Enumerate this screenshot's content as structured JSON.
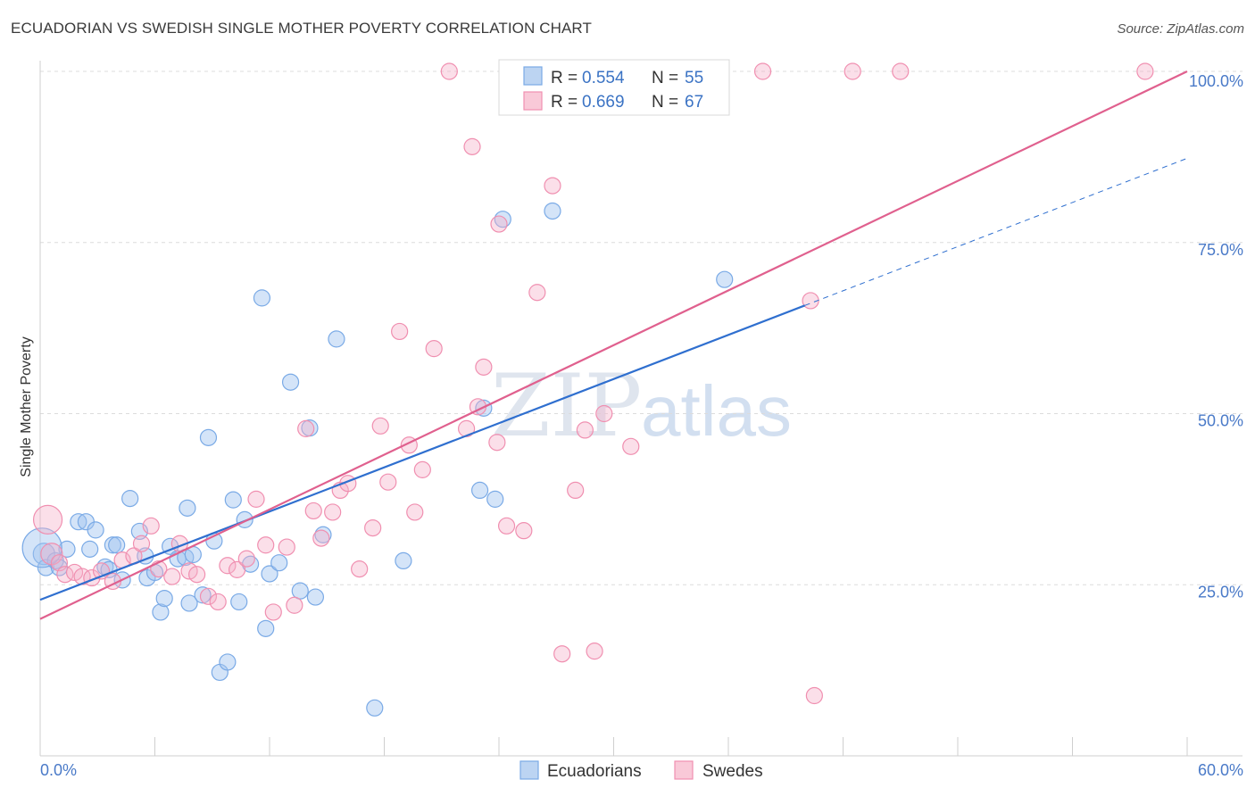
{
  "title": "ECUADORIAN VS SWEDISH SINGLE MOTHER POVERTY CORRELATION CHART",
  "source": "Source: ZipAtlas.com",
  "watermark": {
    "zip": "ZIP",
    "atlas": "atlas"
  },
  "legend": {
    "r_label": "R =",
    "n_label": "N =",
    "items": [
      {
        "r": "0.554",
        "n": "55"
      },
      {
        "r": "0.669",
        "n": "67"
      }
    ]
  },
  "chart_data": {
    "type": "scatter",
    "ylabel": "Single Mother Poverty",
    "xlim": [
      0,
      60
    ],
    "ylim": [
      0,
      100
    ],
    "x_tick_labels": [
      "0.0%",
      "60.0%"
    ],
    "y_ticks": [
      {
        "value": 25,
        "label": "25.0%"
      },
      {
        "value": 50,
        "label": "50.0%"
      },
      {
        "value": 75,
        "label": "75.0%"
      },
      {
        "value": 100,
        "label": "100.0%"
      }
    ],
    "grid": "horizontal dashed",
    "legend_position": "top-center",
    "series": [
      {
        "name": "Ecuadorians",
        "color": "#7aaae6",
        "line_color": "#2f6fcf",
        "trend": {
          "x0": 0,
          "y0": 22.8,
          "x1": 40,
          "y1": 65.8,
          "dash_to_x": 60,
          "dash_to_y": 87.3
        },
        "points": [
          [
            0.2,
            29.5
          ],
          [
            0.3,
            27.5
          ],
          [
            0.8,
            28.5
          ],
          [
            1.0,
            27.5
          ],
          [
            1.4,
            30.2
          ],
          [
            2.0,
            34.2
          ],
          [
            2.4,
            34.2
          ],
          [
            2.6,
            30.2
          ],
          [
            2.9,
            33.0
          ],
          [
            3.4,
            27.6
          ],
          [
            3.6,
            27.2
          ],
          [
            3.8,
            30.8
          ],
          [
            4.0,
            30.8
          ],
          [
            4.3,
            25.7
          ],
          [
            4.7,
            37.6
          ],
          [
            5.2,
            32.8
          ],
          [
            5.5,
            29.2
          ],
          [
            5.6,
            26.0
          ],
          [
            6.0,
            26.8
          ],
          [
            6.3,
            21.0
          ],
          [
            6.5,
            23.0
          ],
          [
            6.8,
            30.6
          ],
          [
            7.2,
            28.8
          ],
          [
            7.6,
            29.0
          ],
          [
            7.7,
            36.2
          ],
          [
            7.8,
            22.3
          ],
          [
            8.0,
            29.4
          ],
          [
            8.5,
            23.5
          ],
          [
            8.8,
            46.5
          ],
          [
            9.1,
            31.4
          ],
          [
            9.4,
            12.2
          ],
          [
            9.8,
            13.7
          ],
          [
            10.1,
            37.4
          ],
          [
            10.4,
            22.5
          ],
          [
            10.7,
            34.5
          ],
          [
            11.0,
            28.0
          ],
          [
            11.6,
            66.9
          ],
          [
            11.8,
            18.6
          ],
          [
            12.0,
            26.6
          ],
          [
            12.5,
            28.2
          ],
          [
            13.1,
            54.6
          ],
          [
            13.6,
            24.1
          ],
          [
            14.1,
            47.9
          ],
          [
            14.4,
            23.2
          ],
          [
            14.8,
            32.3
          ],
          [
            15.5,
            60.9
          ],
          [
            17.5,
            7.0
          ],
          [
            19.0,
            28.5
          ],
          [
            23.0,
            38.8
          ],
          [
            23.2,
            50.8
          ],
          [
            23.8,
            37.5
          ],
          [
            24.2,
            78.4
          ],
          [
            26.8,
            79.6
          ],
          [
            35.8,
            69.6
          ],
          [
            0.1,
            30.4
          ]
        ],
        "point_sizes": {
          "0.1,30.4": 22
        }
      },
      {
        "name": "Swedes",
        "color": "#f08fb0",
        "line_color": "#e0608e",
        "trend": {
          "x0": 0,
          "y0": 20.0,
          "x1": 60,
          "y1": 100.0
        },
        "points": [
          [
            0.4,
            34.5
          ],
          [
            0.6,
            29.5
          ],
          [
            1.0,
            28.2
          ],
          [
            1.3,
            26.5
          ],
          [
            1.8,
            26.8
          ],
          [
            2.2,
            26.2
          ],
          [
            2.7,
            26.0
          ],
          [
            3.2,
            27.0
          ],
          [
            3.8,
            25.5
          ],
          [
            4.3,
            28.6
          ],
          [
            4.9,
            29.2
          ],
          [
            5.3,
            31.0
          ],
          [
            5.8,
            33.6
          ],
          [
            6.2,
            27.3
          ],
          [
            6.9,
            26.2
          ],
          [
            7.3,
            31.0
          ],
          [
            7.8,
            27.0
          ],
          [
            8.2,
            26.5
          ],
          [
            8.8,
            23.3
          ],
          [
            9.3,
            22.5
          ],
          [
            9.8,
            27.8
          ],
          [
            10.3,
            27.2
          ],
          [
            10.8,
            28.8
          ],
          [
            11.3,
            37.5
          ],
          [
            11.8,
            30.8
          ],
          [
            12.2,
            21.0
          ],
          [
            12.9,
            30.5
          ],
          [
            13.3,
            22.0
          ],
          [
            13.9,
            47.8
          ],
          [
            14.3,
            35.8
          ],
          [
            14.7,
            31.8
          ],
          [
            15.3,
            35.6
          ],
          [
            15.7,
            38.8
          ],
          [
            16.1,
            39.8
          ],
          [
            16.7,
            27.3
          ],
          [
            17.4,
            33.3
          ],
          [
            17.8,
            48.2
          ],
          [
            18.2,
            40.0
          ],
          [
            18.8,
            62.0
          ],
          [
            19.3,
            45.4
          ],
          [
            19.6,
            35.6
          ],
          [
            20.0,
            41.8
          ],
          [
            20.6,
            59.5
          ],
          [
            21.4,
            100.0
          ],
          [
            22.3,
            47.8
          ],
          [
            22.6,
            89.0
          ],
          [
            22.9,
            51.0
          ],
          [
            23.2,
            56.8
          ],
          [
            23.9,
            45.8
          ],
          [
            24.4,
            33.6
          ],
          [
            24.0,
            77.7
          ],
          [
            25.3,
            32.9
          ],
          [
            26.0,
            67.7
          ],
          [
            26.8,
            83.3
          ],
          [
            27.3,
            14.9
          ],
          [
            28.0,
            38.8
          ],
          [
            28.5,
            47.6
          ],
          [
            29.0,
            15.3
          ],
          [
            29.5,
            50.0
          ],
          [
            30.9,
            45.2
          ],
          [
            32.1,
            100.0
          ],
          [
            37.8,
            100.0
          ],
          [
            40.3,
            66.5
          ],
          [
            40.5,
            8.8
          ],
          [
            42.5,
            100.0
          ],
          [
            45.0,
            100.0
          ],
          [
            57.8,
            100.0
          ]
        ]
      }
    ]
  }
}
